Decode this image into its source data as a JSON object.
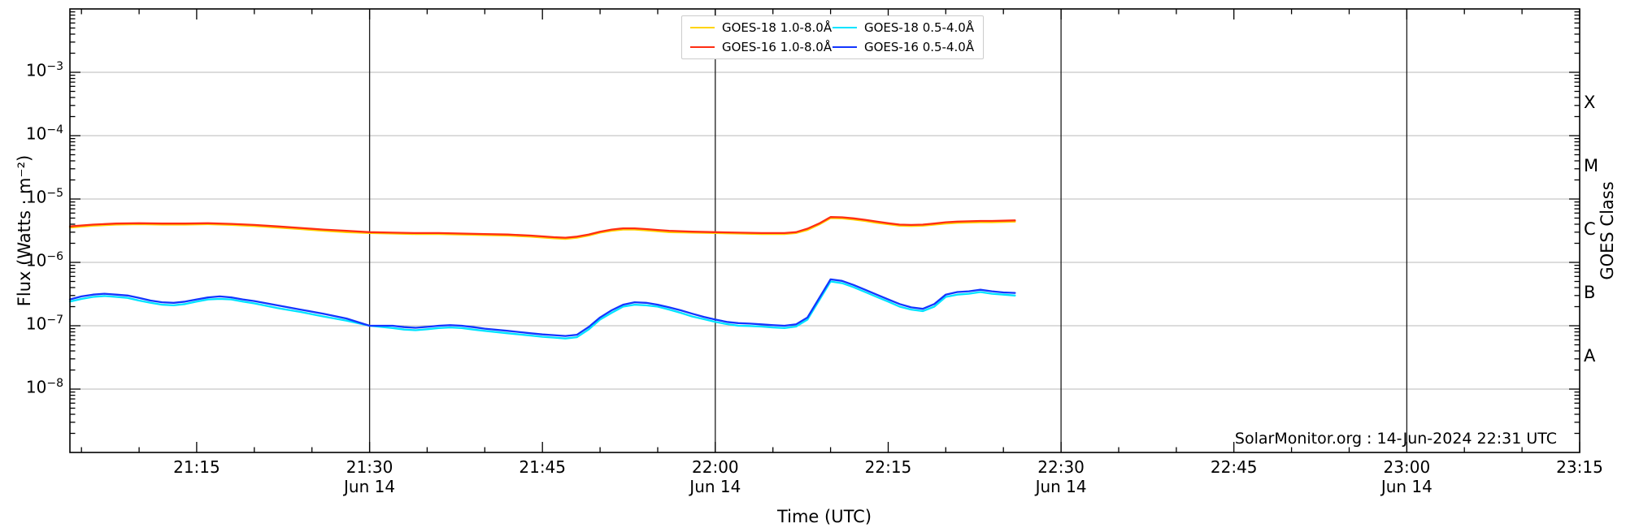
{
  "figure": {
    "annotation": "SolarMonitor.org : 14-Jun-2024 22:31 UTC"
  },
  "chart_data": {
    "type": "line",
    "title": "",
    "xlabel": "Time (UTC)",
    "ylabel": "Flux (Watts · m⁻²)",
    "ylabel_right": "GOES Class",
    "x_encoding": "minutes after 21:00 UTC",
    "xlim": [
      64,
      195
    ],
    "ylim": [
      1e-09,
      0.01
    ],
    "grid": true,
    "legend_position": "top-center",
    "x_ticks": [
      {
        "t": 75,
        "label": "21:15"
      },
      {
        "t": 90,
        "label": "21:30",
        "day": "Jun 14"
      },
      {
        "t": 105,
        "label": "21:45"
      },
      {
        "t": 120,
        "label": "22:00",
        "day": "Jun 14"
      },
      {
        "t": 135,
        "label": "22:15"
      },
      {
        "t": 150,
        "label": "22:30",
        "day": "Jun 14"
      },
      {
        "t": 165,
        "label": "22:45"
      },
      {
        "t": 180,
        "label": "23:00",
        "day": "Jun 14"
      },
      {
        "t": 195,
        "label": "23:15"
      }
    ],
    "x_day_lines": [
      90,
      120,
      150,
      180
    ],
    "y_ticks_exponents": [
      -3,
      -4,
      -5,
      -6,
      -7,
      -8
    ],
    "y_tick_mantissa": "10",
    "goes_classes": [
      {
        "label": "X",
        "exp": -3.5
      },
      {
        "label": "M",
        "exp": -4.5
      },
      {
        "label": "C",
        "exp": -5.5
      },
      {
        "label": "B",
        "exp": -6.5
      },
      {
        "label": "A",
        "exp": -7.5
      }
    ],
    "colors": {
      "grid": "#b8b8b8",
      "day_line": "#1c1c1c",
      "axis": "#000000",
      "background": "#ffffff"
    },
    "series": [
      {
        "name": "GOES-18 1.0-8.0Å",
        "color": "#ffd400",
        "points": [
          [
            64,
            3.55e-06
          ],
          [
            66,
            3.8e-06
          ],
          [
            68,
            3.95e-06
          ],
          [
            70,
            4e-06
          ],
          [
            72,
            3.95e-06
          ],
          [
            74,
            3.95e-06
          ],
          [
            76,
            4e-06
          ],
          [
            78,
            3.9e-06
          ],
          [
            80,
            3.75e-06
          ],
          [
            82,
            3.55e-06
          ],
          [
            84,
            3.35e-06
          ],
          [
            86,
            3.15e-06
          ],
          [
            88,
            3e-06
          ],
          [
            90,
            2.9e-06
          ],
          [
            92,
            2.85e-06
          ],
          [
            94,
            2.8e-06
          ],
          [
            96,
            2.8e-06
          ],
          [
            98,
            2.75e-06
          ],
          [
            100,
            2.7e-06
          ],
          [
            102,
            2.65e-06
          ],
          [
            104,
            2.55e-06
          ],
          [
            106,
            2.4e-06
          ],
          [
            107,
            2.35e-06
          ],
          [
            108,
            2.45e-06
          ],
          [
            109,
            2.65e-06
          ],
          [
            110,
            2.95e-06
          ],
          [
            111,
            3.15e-06
          ],
          [
            112,
            3.3e-06
          ],
          [
            113,
            3.3e-06
          ],
          [
            114,
            3.2e-06
          ],
          [
            115,
            3.1e-06
          ],
          [
            116,
            3e-06
          ],
          [
            118,
            2.95e-06
          ],
          [
            120,
            2.9e-06
          ],
          [
            122,
            2.85e-06
          ],
          [
            124,
            2.8e-06
          ],
          [
            126,
            2.8e-06
          ],
          [
            127,
            2.9e-06
          ],
          [
            128,
            3.25e-06
          ],
          [
            129,
            3.95e-06
          ],
          [
            130,
            5e-06
          ],
          [
            131,
            4.95e-06
          ],
          [
            132,
            4.75e-06
          ],
          [
            133,
            4.5e-06
          ],
          [
            134,
            4.2e-06
          ],
          [
            135,
            4e-06
          ],
          [
            136,
            3.8e-06
          ],
          [
            137,
            3.75e-06
          ],
          [
            138,
            3.8e-06
          ],
          [
            139,
            3.95e-06
          ],
          [
            140,
            4.1e-06
          ],
          [
            141,
            4.2e-06
          ],
          [
            142,
            4.25e-06
          ],
          [
            143,
            4.3e-06
          ],
          [
            144,
            4.3e-06
          ],
          [
            145,
            4.35e-06
          ],
          [
            146,
            4.4e-06
          ]
        ]
      },
      {
        "name": "GOES-18 0.5-4.0Å",
        "color": "#00e4ff",
        "points": [
          [
            64,
            2.4e-07
          ],
          [
            65,
            2.65e-07
          ],
          [
            66,
            2.85e-07
          ],
          [
            67,
            2.95e-07
          ],
          [
            68,
            2.85e-07
          ],
          [
            69,
            2.75e-07
          ],
          [
            70,
            2.5e-07
          ],
          [
            71,
            2.3e-07
          ],
          [
            72,
            2.15e-07
          ],
          [
            73,
            2.1e-07
          ],
          [
            74,
            2.2e-07
          ],
          [
            75,
            2.4e-07
          ],
          [
            76,
            2.6e-07
          ],
          [
            77,
            2.65e-07
          ],
          [
            78,
            2.6e-07
          ],
          [
            79,
            2.4e-07
          ],
          [
            80,
            2.25e-07
          ],
          [
            82,
            1.9e-07
          ],
          [
            84,
            1.65e-07
          ],
          [
            86,
            1.4e-07
          ],
          [
            88,
            1.2e-07
          ],
          [
            90,
            1e-07
          ],
          [
            92,
            9.2e-08
          ],
          [
            93,
            8.7e-08
          ],
          [
            94,
            8.5e-08
          ],
          [
            95,
            8.8e-08
          ],
          [
            96,
            9.2e-08
          ],
          [
            97,
            9.4e-08
          ],
          [
            98,
            9.2e-08
          ],
          [
            99,
            8.7e-08
          ],
          [
            100,
            8.3e-08
          ],
          [
            102,
            7.6e-08
          ],
          [
            104,
            7e-08
          ],
          [
            105,
            6.7e-08
          ],
          [
            106,
            6.5e-08
          ],
          [
            107,
            6.3e-08
          ],
          [
            108,
            6.6e-08
          ],
          [
            109,
            8.7e-08
          ],
          [
            110,
            1.25e-07
          ],
          [
            111,
            1.6e-07
          ],
          [
            112,
            2e-07
          ],
          [
            113,
            2.15e-07
          ],
          [
            114,
            2.1e-07
          ],
          [
            115,
            2e-07
          ],
          [
            116,
            1.8e-07
          ],
          [
            117,
            1.6e-07
          ],
          [
            118,
            1.4e-07
          ],
          [
            119,
            1.27e-07
          ],
          [
            120,
            1.15e-07
          ],
          [
            121,
            1.06e-07
          ],
          [
            122,
            1e-07
          ],
          [
            123,
            9.9e-08
          ],
          [
            124,
            9.7e-08
          ],
          [
            125,
            9.4e-08
          ],
          [
            126,
            9.2e-08
          ],
          [
            127,
            9.7e-08
          ],
          [
            128,
            1.25e-07
          ],
          [
            129,
            2.5e-07
          ],
          [
            130,
            5e-07
          ],
          [
            131,
            4.7e-07
          ],
          [
            132,
            4.05e-07
          ],
          [
            133,
            3.4e-07
          ],
          [
            134,
            2.85e-07
          ],
          [
            135,
            2.4e-07
          ],
          [
            136,
            2e-07
          ],
          [
            137,
            1.8e-07
          ],
          [
            138,
            1.7e-07
          ],
          [
            139,
            2e-07
          ],
          [
            140,
            2.85e-07
          ],
          [
            141,
            3.1e-07
          ],
          [
            142,
            3.2e-07
          ],
          [
            143,
            3.4e-07
          ],
          [
            144,
            3.2e-07
          ],
          [
            145,
            3.1e-07
          ],
          [
            146,
            3e-07
          ]
        ]
      },
      {
        "name": "GOES-16 1.0-8.0Å",
        "color": "#ff2d12",
        "points": [
          [
            64,
            3.7e-06
          ],
          [
            66,
            3.95e-06
          ],
          [
            68,
            4.1e-06
          ],
          [
            70,
            4.15e-06
          ],
          [
            72,
            4.1e-06
          ],
          [
            74,
            4.1e-06
          ],
          [
            76,
            4.15e-06
          ],
          [
            78,
            4.05e-06
          ],
          [
            80,
            3.9e-06
          ],
          [
            82,
            3.7e-06
          ],
          [
            84,
            3.5e-06
          ],
          [
            86,
            3.3e-06
          ],
          [
            88,
            3.15e-06
          ],
          [
            90,
            3e-06
          ],
          [
            92,
            2.95e-06
          ],
          [
            94,
            2.9e-06
          ],
          [
            96,
            2.9e-06
          ],
          [
            98,
            2.85e-06
          ],
          [
            100,
            2.8e-06
          ],
          [
            102,
            2.75e-06
          ],
          [
            104,
            2.65e-06
          ],
          [
            106,
            2.5e-06
          ],
          [
            107,
            2.45e-06
          ],
          [
            108,
            2.55e-06
          ],
          [
            109,
            2.75e-06
          ],
          [
            110,
            3.05e-06
          ],
          [
            111,
            3.3e-06
          ],
          [
            112,
            3.45e-06
          ],
          [
            113,
            3.45e-06
          ],
          [
            114,
            3.35e-06
          ],
          [
            115,
            3.25e-06
          ],
          [
            116,
            3.15e-06
          ],
          [
            118,
            3.05e-06
          ],
          [
            120,
            3e-06
          ],
          [
            122,
            2.95e-06
          ],
          [
            124,
            2.9e-06
          ],
          [
            126,
            2.9e-06
          ],
          [
            127,
            3e-06
          ],
          [
            128,
            3.4e-06
          ],
          [
            129,
            4.1e-06
          ],
          [
            130,
            5.2e-06
          ],
          [
            131,
            5.15e-06
          ],
          [
            132,
            4.95e-06
          ],
          [
            133,
            4.7e-06
          ],
          [
            134,
            4.4e-06
          ],
          [
            135,
            4.15e-06
          ],
          [
            136,
            3.95e-06
          ],
          [
            137,
            3.9e-06
          ],
          [
            138,
            3.95e-06
          ],
          [
            139,
            4.1e-06
          ],
          [
            140,
            4.3e-06
          ],
          [
            141,
            4.4e-06
          ],
          [
            142,
            4.45e-06
          ],
          [
            143,
            4.5e-06
          ],
          [
            144,
            4.5e-06
          ],
          [
            145,
            4.55e-06
          ],
          [
            146,
            4.6e-06
          ]
        ]
      },
      {
        "name": "GOES-16 0.5-4.0Å",
        "color": "#1236ff",
        "points": [
          [
            64,
            2.6e-07
          ],
          [
            65,
            2.9e-07
          ],
          [
            66,
            3.1e-07
          ],
          [
            67,
            3.2e-07
          ],
          [
            68,
            3.1e-07
          ],
          [
            69,
            3e-07
          ],
          [
            70,
            2.75e-07
          ],
          [
            71,
            2.5e-07
          ],
          [
            72,
            2.35e-07
          ],
          [
            73,
            2.3e-07
          ],
          [
            74,
            2.4e-07
          ],
          [
            75,
            2.6e-07
          ],
          [
            76,
            2.8e-07
          ],
          [
            77,
            2.9e-07
          ],
          [
            78,
            2.8e-07
          ],
          [
            79,
            2.6e-07
          ],
          [
            80,
            2.45e-07
          ],
          [
            82,
            2.1e-07
          ],
          [
            84,
            1.8e-07
          ],
          [
            86,
            1.55e-07
          ],
          [
            88,
            1.3e-07
          ],
          [
            90,
            1e-07
          ],
          [
            92,
            1e-07
          ],
          [
            93,
            9.5e-08
          ],
          [
            94,
            9.3e-08
          ],
          [
            95,
            9.6e-08
          ],
          [
            96,
            1e-07
          ],
          [
            97,
            1.02e-07
          ],
          [
            98,
            1e-07
          ],
          [
            99,
            9.5e-08
          ],
          [
            100,
            9e-08
          ],
          [
            102,
            8.3e-08
          ],
          [
            104,
            7.6e-08
          ],
          [
            105,
            7.3e-08
          ],
          [
            106,
            7.1e-08
          ],
          [
            107,
            6.9e-08
          ],
          [
            108,
            7.2e-08
          ],
          [
            109,
            9.5e-08
          ],
          [
            110,
            1.35e-07
          ],
          [
            111,
            1.75e-07
          ],
          [
            112,
            2.15e-07
          ],
          [
            113,
            2.35e-07
          ],
          [
            114,
            2.3e-07
          ],
          [
            115,
            2.15e-07
          ],
          [
            116,
            1.95e-07
          ],
          [
            117,
            1.75e-07
          ],
          [
            118,
            1.55e-07
          ],
          [
            119,
            1.38e-07
          ],
          [
            120,
            1.25e-07
          ],
          [
            121,
            1.15e-07
          ],
          [
            122,
            1.1e-07
          ],
          [
            123,
            1.08e-07
          ],
          [
            124,
            1.05e-07
          ],
          [
            125,
            1.02e-07
          ],
          [
            126,
            1e-07
          ],
          [
            127,
            1.05e-07
          ],
          [
            128,
            1.35e-07
          ],
          [
            129,
            2.7e-07
          ],
          [
            130,
            5.4e-07
          ],
          [
            131,
            5.1e-07
          ],
          [
            132,
            4.4e-07
          ],
          [
            133,
            3.7e-07
          ],
          [
            134,
            3.1e-07
          ],
          [
            135,
            2.6e-07
          ],
          [
            136,
            2.2e-07
          ],
          [
            137,
            1.95e-07
          ],
          [
            138,
            1.85e-07
          ],
          [
            139,
            2.2e-07
          ],
          [
            140,
            3.1e-07
          ],
          [
            141,
            3.4e-07
          ],
          [
            142,
            3.5e-07
          ],
          [
            143,
            3.7e-07
          ],
          [
            144,
            3.5e-07
          ],
          [
            145,
            3.35e-07
          ],
          [
            146,
            3.3e-07
          ]
        ]
      }
    ]
  }
}
